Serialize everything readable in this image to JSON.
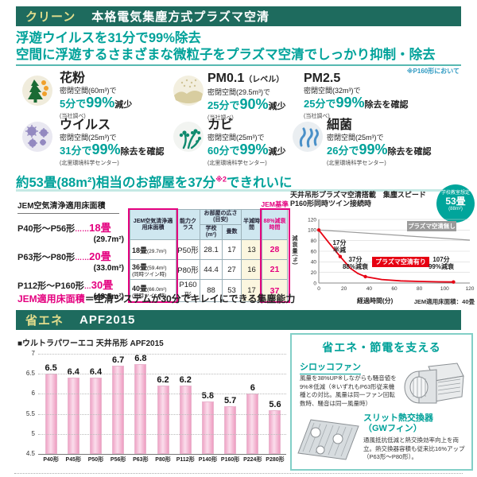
{
  "colors": {
    "header_bg": "#1e6b5e",
    "accent_teal": "#00a29a",
    "pink": "#e4007f",
    "red_line": "#e60012",
    "tag_yellow": "#e3dd8c"
  },
  "header": {
    "tag": "クリーン",
    "title": "本格電気集塵方式プラズマ空清"
  },
  "intro": {
    "line1": "浮遊ウイルスを31分で99%除去",
    "line2": "空間に浮遊するさまざまな微粒子をプラズマ空清でしっかり抑制・除去",
    "note": "※P160形において"
  },
  "benefits": [
    {
      "icon": "pollen-icon",
      "title": "花粉",
      "condition": "密閉空間(60m³)で",
      "time": "5分で",
      "percent": "99%",
      "suffix": "減少",
      "source": "(当社調べ)"
    },
    {
      "icon": "pm01-icon",
      "title": "PM0.1",
      "title_suffix": "（レベル）",
      "condition": "密閉空間(29.5m³)で",
      "time": "25分で",
      "percent": "90%",
      "suffix": "減少",
      "source": "(当社調べ)"
    },
    {
      "icon": "",
      "title": "PM2.5",
      "condition": "密閉空間(32m³)で",
      "time": "25分で",
      "percent": "99%",
      "suffix": "除去を確認",
      "source": "(当社調べ)"
    },
    {
      "icon": "virus-icon",
      "title": "ウイルス",
      "condition": "密閉空間(25m³)で",
      "time": "31分で",
      "percent": "99%",
      "suffix": "除去を確認",
      "source": "(北里環境科学センター)"
    },
    {
      "icon": "mold-icon",
      "title": "カビ",
      "condition": "密閉空間(25m³)で",
      "time": "60分で",
      "percent": "99%",
      "suffix": "減少",
      "source": "(北里環境科学センター)"
    },
    {
      "icon": "bacteria-icon",
      "title": "細菌",
      "condition": "密閉空間(25m³)で",
      "time": "26分で",
      "percent": "99%",
      "suffix": "除去を確認",
      "source": "(北里環境科学センター)"
    }
  ],
  "room_section": {
    "title_pre": "約53畳(88m²)相当のお部屋を37分",
    "title_sup": "※2",
    "title_post": "できれいに"
  },
  "floor_list": {
    "header": "JEM空気清浄適用床面積",
    "items": [
      {
        "range": "P40形〜P56形",
        "dots": "……",
        "size": "18畳",
        "area": "(29.7m²)"
      },
      {
        "range": "P63形〜P80形",
        "dots": "……",
        "size": "20畳",
        "area": "(33.0m²)"
      },
      {
        "range": "P112形〜P160形",
        "dots": "…",
        "size": "30畳",
        "area": "(49.5m²)"
      }
    ]
  },
  "jem_table": {
    "badge": "JEM基準",
    "col1": "JEM空気清浄適用床面積",
    "col2": "能力クラス",
    "col_group": "お部屋の広さ(目安)",
    "col3": "学校(m²)",
    "col4": "畳数",
    "col5": "半減時間",
    "col6": "88%減衰時間",
    "rows": [
      {
        "size": "18畳",
        "size_note": "(29.7m²)",
        "size_note2": "",
        "class": "P50形",
        "school": "28.1",
        "tatami": "17",
        "half": "13",
        "decay": "28"
      },
      {
        "size": "36畳",
        "size_note": "(59.4m²)",
        "size_note2": "(同時ツイン時)",
        "class": "P80形",
        "school": "44.4",
        "tatami": "27",
        "half": "16",
        "decay": "21"
      },
      {
        "size": "40畳",
        "size_note": "(66.0m²)",
        "size_note2": "(同時ツイン時)",
        "class": "P160形",
        "school": "88",
        "tatami": "53",
        "half": "17",
        "decay": "37"
      }
    ]
  },
  "jem_note": {
    "label": "JEM適用床面積",
    "text": "＝空清システムが30分でキレイにできる集塵能力"
  },
  "eco_header": {
    "tag": "省エネ",
    "title": "APF2015"
  },
  "chart_data": [
    {
      "type": "line",
      "title": "天井吊形プラズマ空清搭載　集塵スピード",
      "subtitle": "P160形同時ツイン接続時",
      "xlabel": "経過時間(分)",
      "ylabel": "減衰量(%)",
      "xlim": [
        0,
        120
      ],
      "ylim": [
        0,
        120
      ],
      "xticks": [
        0,
        20,
        40,
        60,
        80,
        100,
        120
      ],
      "yticks": [
        0,
        20,
        40,
        60,
        80,
        100,
        120
      ],
      "grid": "horizontal",
      "series": [
        {
          "name": "プラズマ空清無し",
          "color": "#9b9b9b",
          "points": [
            [
              0,
              100
            ],
            [
              120,
              81
            ]
          ]
        },
        {
          "name": "プラズマ空清有り",
          "color": "#e60012",
          "points": [
            [
              0,
              100
            ],
            [
              8,
              76
            ],
            [
              17,
              50
            ],
            [
              25,
              28
            ],
            [
              31,
              18
            ],
            [
              37,
              12
            ],
            [
              50,
              6.5
            ],
            [
              65,
              4
            ],
            [
              80,
              3
            ],
            [
              95,
              2.3
            ],
            [
              107,
              2
            ]
          ],
          "markers": [
            [
              0,
              100
            ],
            [
              17,
              50
            ],
            [
              37,
              12
            ],
            [
              107,
              2
            ]
          ]
        }
      ],
      "annotations": [
        {
          "line1": "17分",
          "line2": "半減"
        },
        {
          "line1": "37分",
          "line2": "88%減衰"
        },
        {
          "line1": "107分",
          "line2": "99%減衰"
        }
      ],
      "badge": {
        "line1": "学校教室想定",
        "line2": "53畳",
        "line3": "(88m²)"
      },
      "footnote": "JEM適用床面積：40畳"
    },
    {
      "type": "bar",
      "title": "■ウルトラパワーエコ 天井吊形 APF2015",
      "categories": [
        "P40形",
        "P45形",
        "P50形",
        "P56形",
        "P63形",
        "P80形",
        "P112形",
        "P140形",
        "P160形",
        "P224形",
        "P280形"
      ],
      "values": [
        6.5,
        6.4,
        6.4,
        6.7,
        6.8,
        6.2,
        6.2,
        5.8,
        5.7,
        6,
        5.6
      ],
      "ylim": [
        4.5,
        7
      ],
      "yticks": [
        4.5,
        5,
        5.5,
        6,
        6.5,
        7
      ],
      "bar_color": "#f2aecb"
    }
  ],
  "eco_box": {
    "title": "省エネ・節電を支える",
    "fan": {
      "name": "シロッコファン",
      "desc": "風量を38%UP※しながらも騒音値を9%※低減（※いずれもP63形従来機種との対比。風量は同一ファン回転数時、騒音は同一風量時）"
    },
    "fin": {
      "name": "スリット熱交換器",
      "name2": "（GWフィン）",
      "desc": "通風抵抗低減と熱交換効率向上を両立。熱交換器容積も従来比16%アップ（P63形〜P80形）。"
    }
  }
}
